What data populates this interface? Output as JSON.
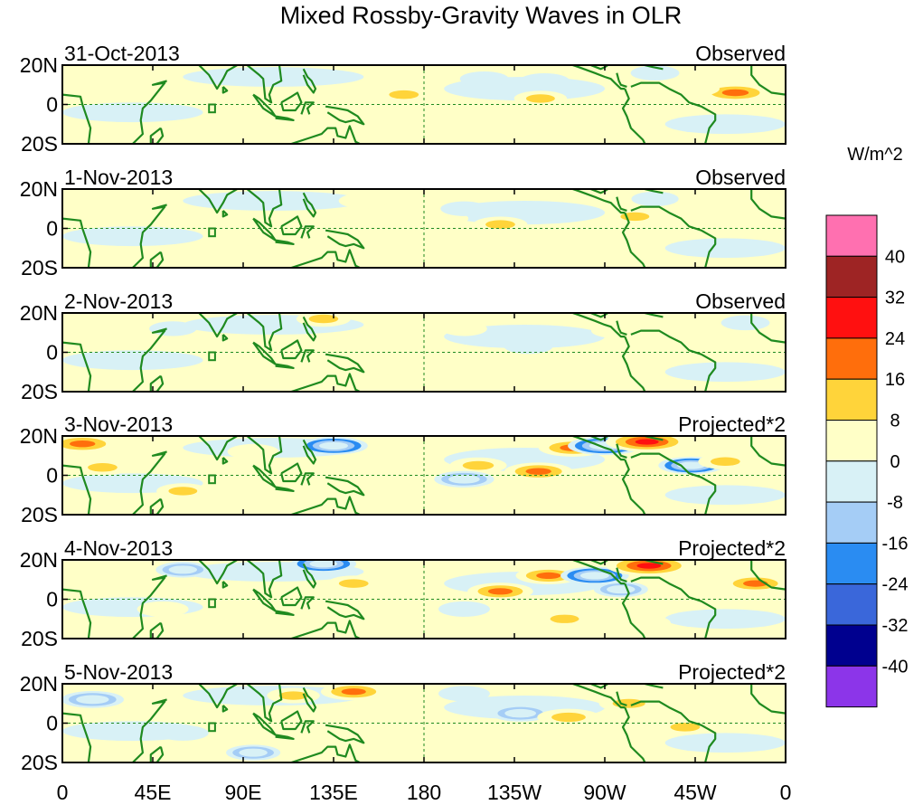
{
  "chart_data": {
    "type": "heatmap",
    "title": "Mixed Rossby-Gravity Waves in OLR",
    "units_label": "W/m^2",
    "lat_ticks": [
      "20N",
      "0",
      "20S"
    ],
    "lon_ticks": [
      "0",
      "45E",
      "90E",
      "135E",
      "180",
      "135W",
      "90W",
      "45W",
      "0"
    ],
    "lon_range": [
      0,
      360
    ],
    "lat_range": [
      -20,
      20
    ],
    "colorbar": {
      "levels": [
        -40,
        -32,
        -24,
        -16,
        -8,
        0,
        8,
        16,
        24,
        32,
        40
      ],
      "colors": [
        "#8C35E9",
        "#00008F",
        "#3A67DA",
        "#2A8CF2",
        "#A5CDF6",
        "#D8F1F6",
        "#FFFFC7",
        "#FFD43A",
        "#FF6E0C",
        "#FF1010",
        "#9E2424",
        "#FF70B0"
      ],
      "level_labels": [
        "40",
        "32",
        "24",
        "16",
        "8",
        "0",
        "-8",
        "-16",
        "-24",
        "-32",
        "-40"
      ]
    },
    "panels": [
      {
        "date": "31-Oct-2013",
        "kind": "Observed",
        "anomalies": [
          {
            "lon": 170,
            "lat": 5,
            "value": 10
          },
          {
            "lon": 238,
            "lat": 3,
            "value": 9
          },
          {
            "lon": 335,
            "lat": 6,
            "value": 22
          },
          {
            "lon": 315,
            "lat": 8,
            "value": 6
          },
          {
            "lon": 210,
            "lat": 13,
            "value": -6
          },
          {
            "lon": 240,
            "lat": 12,
            "value": -7
          },
          {
            "lon": 295,
            "lat": 16,
            "value": -6
          },
          {
            "lon": 20,
            "lat": 16,
            "value": 6
          },
          {
            "lon": 150,
            "lat": -10,
            "value": 5
          }
        ]
      },
      {
        "date": "1-Nov-2013",
        "kind": "Observed",
        "anomalies": [
          {
            "lon": 218,
            "lat": 2,
            "value": 10
          },
          {
            "lon": 285,
            "lat": 6,
            "value": 9
          },
          {
            "lon": 190,
            "lat": 5,
            "value": 6
          },
          {
            "lon": 150,
            "lat": 14,
            "value": 7
          },
          {
            "lon": 295,
            "lat": 15,
            "value": -5
          },
          {
            "lon": 200,
            "lat": 10,
            "value": -5
          },
          {
            "lon": 95,
            "lat": -5,
            "value": 4
          }
        ]
      },
      {
        "date": "2-Nov-2013",
        "kind": "Observed",
        "anomalies": [
          {
            "lon": 130,
            "lat": 17,
            "value": 10
          },
          {
            "lon": 232,
            "lat": 3,
            "value": -6
          },
          {
            "lon": 275,
            "lat": 11,
            "value": 5
          },
          {
            "lon": 200,
            "lat": 12,
            "value": 4
          },
          {
            "lon": 340,
            "lat": 15,
            "value": -6
          },
          {
            "lon": 55,
            "lat": 12,
            "value": -5
          },
          {
            "lon": 165,
            "lat": -8,
            "value": 4
          }
        ]
      },
      {
        "date": "3-Nov-2013",
        "kind": "Projected*2",
        "anomalies": [
          {
            "lon": 10,
            "lat": 16,
            "value": 20
          },
          {
            "lon": 20,
            "lat": 4,
            "value": 10
          },
          {
            "lon": 135,
            "lat": 15,
            "value": -20
          },
          {
            "lon": 207,
            "lat": 5,
            "value": 12
          },
          {
            "lon": 237,
            "lat": 2,
            "value": 20
          },
          {
            "lon": 254,
            "lat": 14,
            "value": 20
          },
          {
            "lon": 270,
            "lat": 15,
            "value": -24
          },
          {
            "lon": 291,
            "lat": 17,
            "value": 30
          },
          {
            "lon": 313,
            "lat": 5,
            "value": -18
          },
          {
            "lon": 330,
            "lat": 7,
            "value": 10
          },
          {
            "lon": 200,
            "lat": -2,
            "value": -14
          },
          {
            "lon": 220,
            "lat": -10,
            "value": 8
          },
          {
            "lon": 60,
            "lat": -8,
            "value": 9
          },
          {
            "lon": 165,
            "lat": -10,
            "value": 8
          },
          {
            "lon": 95,
            "lat": 12,
            "value": 8
          }
        ]
      },
      {
        "date": "4-Nov-2013",
        "kind": "Projected*2",
        "anomalies": [
          {
            "lon": 130,
            "lat": 18,
            "value": -18
          },
          {
            "lon": 145,
            "lat": 8,
            "value": 10
          },
          {
            "lon": 218,
            "lat": 4,
            "value": 18
          },
          {
            "lon": 242,
            "lat": 12,
            "value": 18
          },
          {
            "lon": 265,
            "lat": 12,
            "value": -20
          },
          {
            "lon": 292,
            "lat": 17,
            "value": 32
          },
          {
            "lon": 278,
            "lat": 5,
            "value": -10
          },
          {
            "lon": 345,
            "lat": 8,
            "value": 18
          },
          {
            "lon": 310,
            "lat": 2,
            "value": 8
          },
          {
            "lon": 50,
            "lat": -5,
            "value": 8
          },
          {
            "lon": 250,
            "lat": -10,
            "value": 9
          },
          {
            "lon": 290,
            "lat": -12,
            "value": 8
          },
          {
            "lon": 200,
            "lat": -5,
            "value": -8
          },
          {
            "lon": 60,
            "lat": 15,
            "value": -10
          }
        ]
      },
      {
        "date": "5-Nov-2013",
        "kind": "Projected*2",
        "anomalies": [
          {
            "lon": 15,
            "lat": 12,
            "value": -16
          },
          {
            "lon": 115,
            "lat": 14,
            "value": 9
          },
          {
            "lon": 145,
            "lat": 16,
            "value": 18
          },
          {
            "lon": 228,
            "lat": 5,
            "value": -14
          },
          {
            "lon": 252,
            "lat": 3,
            "value": 16
          },
          {
            "lon": 282,
            "lat": 10,
            "value": 14
          },
          {
            "lon": 310,
            "lat": -2,
            "value": 10
          },
          {
            "lon": 330,
            "lat": 12,
            "value": 8
          },
          {
            "lon": 200,
            "lat": 15,
            "value": -8
          },
          {
            "lon": 60,
            "lat": -5,
            "value": -8
          },
          {
            "lon": 170,
            "lat": -12,
            "value": 8
          },
          {
            "lon": 95,
            "lat": -15,
            "value": -10
          }
        ]
      }
    ]
  }
}
